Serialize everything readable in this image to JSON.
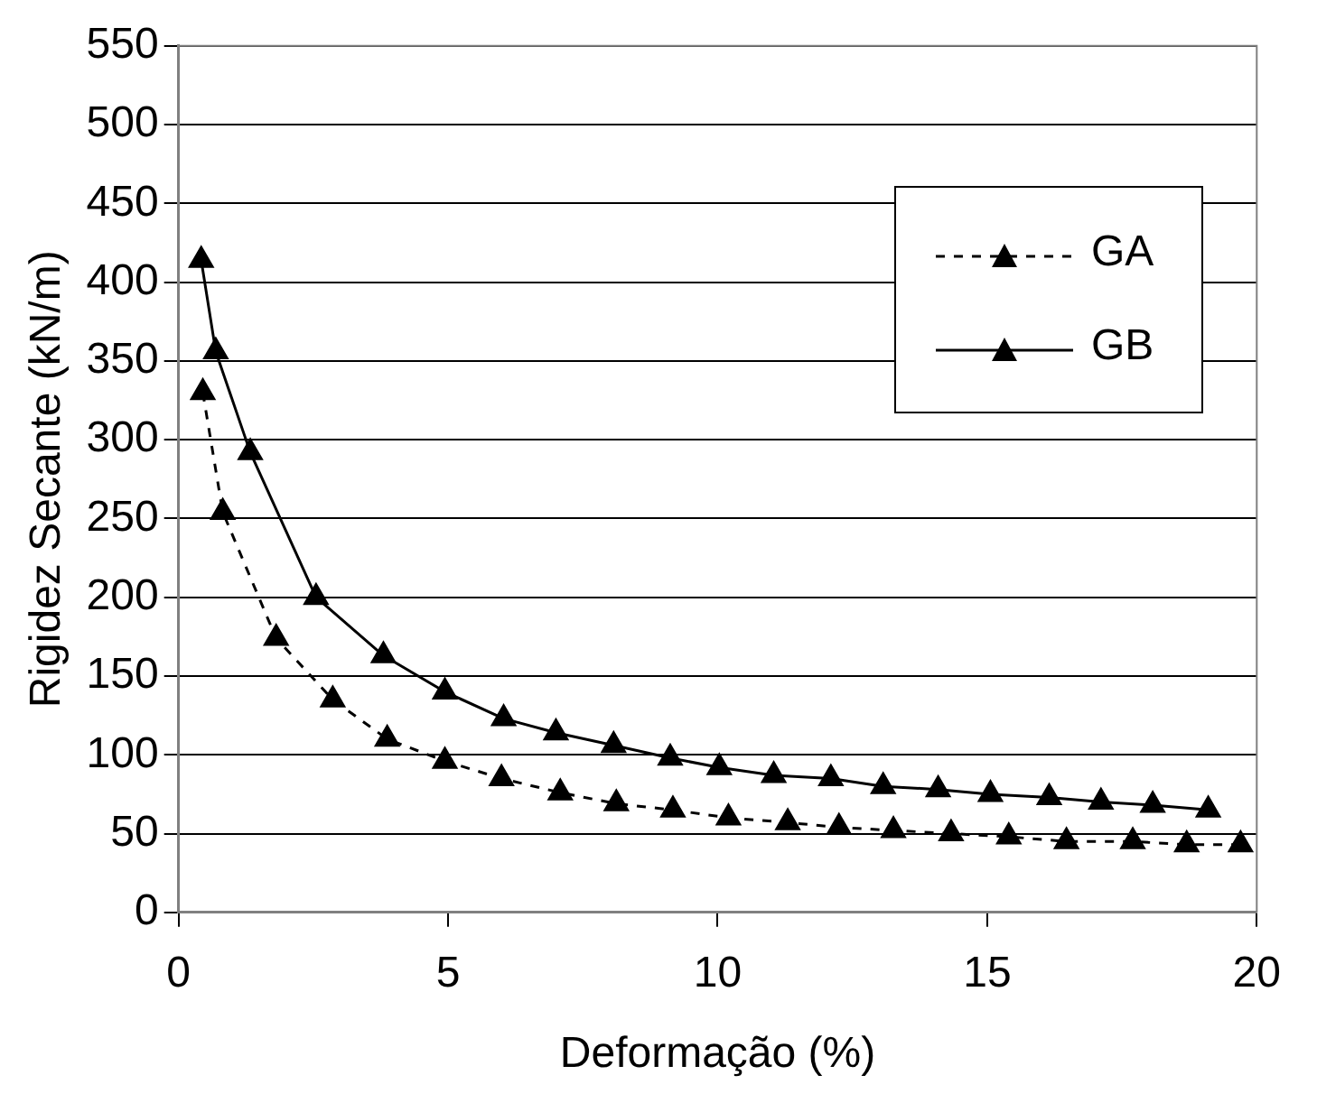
{
  "chart_data": {
    "type": "line",
    "xlabel": "Deformação (%)",
    "ylabel": "Rigidez Secante (kN/m)",
    "xlim": [
      0,
      20
    ],
    "xticks": [
      0,
      5,
      10,
      15,
      20
    ],
    "ylim": [
      0,
      550
    ],
    "yticks": [
      0,
      50,
      100,
      150,
      200,
      250,
      300,
      350,
      400,
      450,
      500,
      550
    ],
    "grid": "y",
    "legend": "top right",
    "marker": "triangle",
    "series": [
      {
        "name": "GA",
        "color": "#000000",
        "line_style": "dashed",
        "x": [
          0.45,
          0.82,
          1.81,
          2.86,
          3.87,
          4.94,
          5.99,
          7.08,
          8.12,
          9.17,
          10.2,
          11.3,
          12.25,
          13.26,
          14.33,
          15.4,
          16.47,
          17.7,
          18.7,
          19.7
        ],
        "values": [
          330,
          254,
          174,
          135,
          110,
          96,
          85,
          76,
          69,
          65,
          60,
          57,
          54,
          52,
          50,
          48,
          45,
          45,
          43,
          43
        ]
      },
      {
        "name": "GB",
        "color": "#000000",
        "line_style": "solid",
        "x": [
          0.42,
          0.69,
          1.33,
          2.55,
          3.8,
          4.94,
          6.03,
          7.0,
          8.07,
          9.12,
          10.03,
          11.04,
          12.1,
          13.07,
          14.09,
          15.06,
          16.15,
          17.11,
          18.07,
          19.1
        ],
        "values": [
          414,
          356,
          292,
          200,
          163,
          140,
          123,
          114,
          106,
          98,
          92,
          87,
          85,
          80,
          78,
          75,
          73,
          70,
          68,
          65
        ]
      }
    ]
  }
}
